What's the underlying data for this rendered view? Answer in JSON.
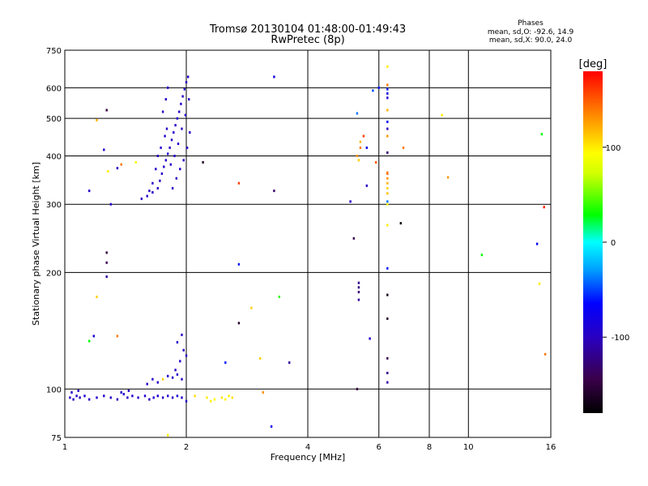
{
  "header": {
    "title_line1": "Tromsø 20130104 01:48:00-01:49:43",
    "title_line2": "RwPretec (8p)"
  },
  "phase_info": {
    "label": "Phases",
    "line_o": "mean, sd,O: -92.6, 14.9",
    "line_x": "mean, sd,X:  90.0, 24.0"
  },
  "chart_data": {
    "type": "scatter",
    "xlabel": "Frequency [MHz]",
    "ylabel": "Stationary phase Virtual Height [km]",
    "x_scale": "log2",
    "y_scale": "log",
    "xlim": [
      1,
      16
    ],
    "ylim": [
      75,
      750
    ],
    "x_ticks": [
      1,
      2,
      4,
      6,
      8,
      10,
      16
    ],
    "y_ticks": [
      75,
      100,
      200,
      300,
      400,
      500,
      600,
      750
    ],
    "grid": true,
    "colorbar": {
      "label": "[deg]",
      "range": [
        -180,
        180
      ],
      "ticks": [
        100,
        0,
        -100
      ]
    },
    "points": [
      {
        "f": 1.03,
        "h": 95,
        "p": -95
      },
      {
        "f": 1.05,
        "h": 94,
        "p": -98
      },
      {
        "f": 1.07,
        "h": 96,
        "p": -90
      },
      {
        "f": 1.09,
        "h": 95,
        "p": -100
      },
      {
        "f": 1.12,
        "h": 96,
        "p": -88
      },
      {
        "f": 1.15,
        "h": 94,
        "p": -95
      },
      {
        "f": 1.2,
        "h": 95,
        "p": -92
      },
      {
        "f": 1.25,
        "h": 96,
        "p": -96
      },
      {
        "f": 1.3,
        "h": 95,
        "p": -94
      },
      {
        "f": 1.35,
        "h": 94,
        "p": -99
      },
      {
        "f": 1.4,
        "h": 97,
        "p": -91
      },
      {
        "f": 1.43,
        "h": 95,
        "p": -95
      },
      {
        "f": 1.47,
        "h": 96,
        "p": -93
      },
      {
        "f": 1.52,
        "h": 95,
        "p": -97
      },
      {
        "f": 1.58,
        "h": 96,
        "p": -90
      },
      {
        "f": 1.62,
        "h": 94,
        "p": -96
      },
      {
        "f": 1.66,
        "h": 95,
        "p": -94
      },
      {
        "f": 1.7,
        "h": 96,
        "p": -92
      },
      {
        "f": 1.75,
        "h": 95,
        "p": -98
      },
      {
        "f": 1.8,
        "h": 96,
        "p": -93
      },
      {
        "f": 1.85,
        "h": 95,
        "p": -95
      },
      {
        "f": 1.9,
        "h": 96,
        "p": -90
      },
      {
        "f": 1.95,
        "h": 95,
        "p": -96
      },
      {
        "f": 2.0,
        "h": 93,
        "p": -92
      },
      {
        "f": 1.04,
        "h": 98,
        "p": -94
      },
      {
        "f": 1.08,
        "h": 99,
        "p": -96
      },
      {
        "f": 1.38,
        "h": 98,
        "p": -93
      },
      {
        "f": 1.44,
        "h": 99,
        "p": -95
      },
      {
        "f": 1.6,
        "h": 103,
        "p": -95
      },
      {
        "f": 1.65,
        "h": 106,
        "p": -92
      },
      {
        "f": 1.7,
        "h": 104,
        "p": -97
      },
      {
        "f": 1.75,
        "h": 106,
        "p": 110
      },
      {
        "f": 1.8,
        "h": 108,
        "p": -94
      },
      {
        "f": 1.85,
        "h": 107,
        "p": -96
      },
      {
        "f": 1.9,
        "h": 109,
        "p": -93
      },
      {
        "f": 1.95,
        "h": 106,
        "p": -95
      },
      {
        "f": 1.88,
        "h": 112,
        "p": -98
      },
      {
        "f": 1.93,
        "h": 118,
        "p": -95
      },
      {
        "f": 1.97,
        "h": 126,
        "p": -92
      },
      {
        "f": 2.0,
        "h": 122,
        "p": -97
      },
      {
        "f": 1.9,
        "h": 132,
        "p": -94
      },
      {
        "f": 1.95,
        "h": 138,
        "p": -96
      },
      {
        "f": 2.1,
        "h": 96,
        "p": 105
      },
      {
        "f": 2.25,
        "h": 95,
        "p": 100
      },
      {
        "f": 2.35,
        "h": 94,
        "p": 95
      },
      {
        "f": 2.45,
        "h": 95,
        "p": 102
      },
      {
        "f": 2.55,
        "h": 96,
        "p": 98
      },
      {
        "f": 2.6,
        "h": 95,
        "p": 104
      },
      {
        "f": 2.3,
        "h": 93,
        "p": 100
      },
      {
        "f": 2.5,
        "h": 94,
        "p": 96
      },
      {
        "f": 1.55,
        "h": 310,
        "p": -95
      },
      {
        "f": 1.6,
        "h": 315,
        "p": -92
      },
      {
        "f": 1.65,
        "h": 322,
        "p": -97
      },
      {
        "f": 1.7,
        "h": 330,
        "p": -94
      },
      {
        "f": 1.72,
        "h": 345,
        "p": -96
      },
      {
        "f": 1.74,
        "h": 360,
        "p": -93
      },
      {
        "f": 1.76,
        "h": 375,
        "p": -95
      },
      {
        "f": 1.78,
        "h": 390,
        "p": -98
      },
      {
        "f": 1.8,
        "h": 405,
        "p": -92
      },
      {
        "f": 1.82,
        "h": 420,
        "p": -95
      },
      {
        "f": 1.84,
        "h": 440,
        "p": -97
      },
      {
        "f": 1.86,
        "h": 460,
        "p": -94
      },
      {
        "f": 1.88,
        "h": 480,
        "p": -96
      },
      {
        "f": 1.9,
        "h": 500,
        "p": -93
      },
      {
        "f": 1.92,
        "h": 520,
        "p": -95
      },
      {
        "f": 1.94,
        "h": 545,
        "p": -92
      },
      {
        "f": 1.96,
        "h": 570,
        "p": -97
      },
      {
        "f": 1.98,
        "h": 595,
        "p": -94
      },
      {
        "f": 2.0,
        "h": 620,
        "p": -96
      },
      {
        "f": 2.02,
        "h": 640,
        "p": -93
      },
      {
        "f": 1.7,
        "h": 400,
        "p": -95
      },
      {
        "f": 1.73,
        "h": 420,
        "p": -92
      },
      {
        "f": 1.77,
        "h": 450,
        "p": -97
      },
      {
        "f": 1.79,
        "h": 470,
        "p": -94
      },
      {
        "f": 1.83,
        "h": 380,
        "p": -96
      },
      {
        "f": 1.87,
        "h": 400,
        "p": -93
      },
      {
        "f": 1.91,
        "h": 430,
        "p": -95
      },
      {
        "f": 1.95,
        "h": 470,
        "p": -98
      },
      {
        "f": 1.99,
        "h": 510,
        "p": -92
      },
      {
        "f": 2.03,
        "h": 560,
        "p": -95
      },
      {
        "f": 1.75,
        "h": 520,
        "p": -96
      },
      {
        "f": 1.78,
        "h": 560,
        "p": -94
      },
      {
        "f": 1.8,
        "h": 600,
        "p": -93
      },
      {
        "f": 1.85,
        "h": 330,
        "p": -95
      },
      {
        "f": 1.89,
        "h": 350,
        "p": -97
      },
      {
        "f": 1.93,
        "h": 370,
        "p": -94
      },
      {
        "f": 1.97,
        "h": 390,
        "p": -96
      },
      {
        "f": 2.01,
        "h": 420,
        "p": -93
      },
      {
        "f": 2.04,
        "h": 460,
        "p": -95
      },
      {
        "f": 1.68,
        "h": 370,
        "p": -92
      },
      {
        "f": 1.65,
        "h": 340,
        "p": -95
      },
      {
        "f": 1.62,
        "h": 325,
        "p": -97
      },
      {
        "f": 1.15,
        "h": 325,
        "p": -95
      },
      {
        "f": 1.3,
        "h": 300,
        "p": -93
      },
      {
        "f": 1.35,
        "h": 372,
        "p": -96
      },
      {
        "f": 1.25,
        "h": 415,
        "p": -94
      },
      {
        "f": 1.27,
        "h": 525,
        "p": -150
      },
      {
        "f": 1.2,
        "h": 495,
        "p": 120
      },
      {
        "f": 1.28,
        "h": 365,
        "p": 100
      },
      {
        "f": 1.38,
        "h": 380,
        "p": 140
      },
      {
        "f": 1.5,
        "h": 385,
        "p": 90
      },
      {
        "f": 2.2,
        "h": 385,
        "p": -160
      },
      {
        "f": 1.27,
        "h": 225,
        "p": -150
      },
      {
        "f": 1.27,
        "h": 212,
        "p": -140
      },
      {
        "f": 1.27,
        "h": 195,
        "p": -110
      },
      {
        "f": 1.2,
        "h": 173,
        "p": 110
      },
      {
        "f": 1.18,
        "h": 137,
        "p": -90
      },
      {
        "f": 1.15,
        "h": 133,
        "p": 30
      },
      {
        "f": 1.35,
        "h": 137,
        "p": 140
      },
      {
        "f": 1.8,
        "h": 76,
        "p": 100
      },
      {
        "f": 2.7,
        "h": 340,
        "p": 160
      },
      {
        "f": 2.7,
        "h": 210,
        "p": -60
      },
      {
        "f": 2.7,
        "h": 148,
        "p": -160
      },
      {
        "f": 2.5,
        "h": 117,
        "p": -60
      },
      {
        "f": 2.9,
        "h": 162,
        "p": 110
      },
      {
        "f": 3.1,
        "h": 98,
        "p": 130
      },
      {
        "f": 3.05,
        "h": 120,
        "p": 110
      },
      {
        "f": 3.3,
        "h": 640,
        "p": -80
      },
      {
        "f": 3.3,
        "h": 325,
        "p": -130
      },
      {
        "f": 3.4,
        "h": 173,
        "p": 40
      },
      {
        "f": 3.6,
        "h": 117,
        "p": -110
      },
      {
        "f": 3.25,
        "h": 80,
        "p": -70
      },
      {
        "f": 5.1,
        "h": 305,
        "p": -100
      },
      {
        "f": 5.2,
        "h": 245,
        "p": -140
      },
      {
        "f": 5.3,
        "h": 100,
        "p": -150
      },
      {
        "f": 5.35,
        "h": 188,
        "p": -120
      },
      {
        "f": 5.35,
        "h": 183,
        "p": -125
      },
      {
        "f": 5.35,
        "h": 178,
        "p": -130
      },
      {
        "f": 5.35,
        "h": 170,
        "p": -115
      },
      {
        "f": 5.3,
        "h": 400,
        "p": 130
      },
      {
        "f": 5.35,
        "h": 390,
        "p": 110
      },
      {
        "f": 5.4,
        "h": 420,
        "p": 140
      },
      {
        "f": 5.4,
        "h": 435,
        "p": 120
      },
      {
        "f": 5.5,
        "h": 450,
        "p": 160
      },
      {
        "f": 5.6,
        "h": 335,
        "p": -100
      },
      {
        "f": 5.6,
        "h": 420,
        "p": -80
      },
      {
        "f": 5.3,
        "h": 515,
        "p": -40
      },
      {
        "f": 5.8,
        "h": 590,
        "p": -50
      },
      {
        "f": 5.7,
        "h": 135,
        "p": -90
      },
      {
        "f": 5.9,
        "h": 385,
        "p": 150
      },
      {
        "f": 6.0,
        "h": 600,
        "p": -60
      },
      {
        "f": 6.3,
        "h": 680,
        "p": 100
      },
      {
        "f": 6.3,
        "h": 610,
        "p": 140
      },
      {
        "f": 6.3,
        "h": 595,
        "p": -60
      },
      {
        "f": 6.3,
        "h": 580,
        "p": -80
      },
      {
        "f": 6.3,
        "h": 565,
        "p": -90
      },
      {
        "f": 6.3,
        "h": 525,
        "p": 120
      },
      {
        "f": 6.3,
        "h": 490,
        "p": -70
      },
      {
        "f": 6.3,
        "h": 470,
        "p": -100
      },
      {
        "f": 6.3,
        "h": 450,
        "p": 130
      },
      {
        "f": 6.3,
        "h": 408,
        "p": -130
      },
      {
        "f": 6.3,
        "h": 360,
        "p": 150
      },
      {
        "f": 6.3,
        "h": 350,
        "p": 130
      },
      {
        "f": 6.3,
        "h": 340,
        "p": 120
      },
      {
        "f": 6.3,
        "h": 330,
        "p": 110
      },
      {
        "f": 6.3,
        "h": 320,
        "p": 115
      },
      {
        "f": 6.3,
        "h": 305,
        "p": -40
      },
      {
        "f": 6.3,
        "h": 300,
        "p": 90
      },
      {
        "f": 6.3,
        "h": 265,
        "p": 100
      },
      {
        "f": 6.3,
        "h": 205,
        "p": -60
      },
      {
        "f": 6.3,
        "h": 175,
        "p": -170
      },
      {
        "f": 6.3,
        "h": 152,
        "p": -160
      },
      {
        "f": 6.3,
        "h": 120,
        "p": -140
      },
      {
        "f": 6.3,
        "h": 110,
        "p": -120
      },
      {
        "f": 6.3,
        "h": 104,
        "p": -110
      },
      {
        "f": 6.3,
        "h": 362,
        "p": 140
      },
      {
        "f": 6.8,
        "h": 268,
        "p": -170
      },
      {
        "f": 6.9,
        "h": 420,
        "p": 140
      },
      {
        "f": 8.6,
        "h": 510,
        "p": 100
      },
      {
        "f": 8.9,
        "h": 352,
        "p": 130
      },
      {
        "f": 10.8,
        "h": 222,
        "p": 30
      },
      {
        "f": 14.8,
        "h": 237,
        "p": -70
      },
      {
        "f": 15.2,
        "h": 455,
        "p": 30
      },
      {
        "f": 15.4,
        "h": 295,
        "p": 170
      },
      {
        "f": 15.0,
        "h": 187,
        "p": 100
      },
      {
        "f": 15.5,
        "h": 123,
        "p": 140
      }
    ]
  }
}
